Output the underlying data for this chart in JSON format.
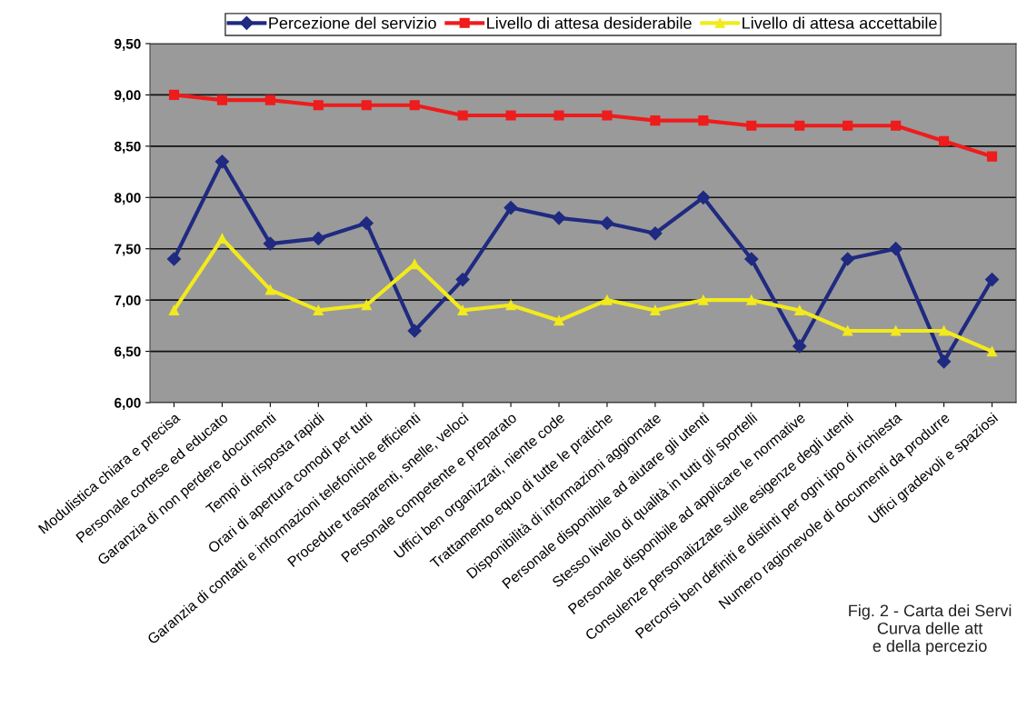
{
  "chart_data": {
    "type": "line",
    "categories": [
      "Modulistica chiara e precisa",
      "Personale cortese ed educato",
      "Garanzia di non perdere documenti",
      "Tempi di risposta rapidi",
      "Orari di apertura comodi per tutti",
      "Garanzia di contatti e informazioni telefoniche efficienti",
      "Procedure trasparenti, snelle, veloci",
      "Personale competente e preparato",
      "Uffici ben organizzati, niente code",
      "Trattamento equo di tutte le pratiche",
      "Disponibilità di informazioni aggiornate",
      "Personale disponibile ad aiutare gli utenti",
      "Stesso livello di qualità in tutti gli sportelli",
      "Personale disponibile ad applicare le normative",
      "Consulenze personalizzate sulle esigenze degli utenti",
      "Percorsi ben definiti e distinti per ogni tipo di richiesta",
      "Numero ragionevole di documenti da produrre",
      "Uffici gradevoli e spaziosi"
    ],
    "series": [
      {
        "name": "Percezione del servizio",
        "color": "#1f2a80",
        "marker": "diamond",
        "values": [
          7.4,
          8.35,
          7.55,
          7.6,
          7.75,
          6.7,
          7.2,
          7.9,
          7.8,
          7.75,
          7.65,
          8.0,
          7.4,
          6.55,
          7.4,
          7.5,
          6.4,
          7.2
        ]
      },
      {
        "name": "Livello di attesa desiderabile",
        "color": "#ee1c1c",
        "marker": "square",
        "values": [
          9.0,
          8.95,
          8.95,
          8.9,
          8.9,
          8.9,
          8.8,
          8.8,
          8.8,
          8.8,
          8.75,
          8.75,
          8.7,
          8.7,
          8.7,
          8.7,
          8.55,
          8.4
        ]
      },
      {
        "name": "Livello di attesa accettabile",
        "color": "#f2ea1c",
        "marker": "triangle",
        "values": [
          6.9,
          7.6,
          7.1,
          6.9,
          6.95,
          7.35,
          6.9,
          6.95,
          6.8,
          7.0,
          6.9,
          7.0,
          7.0,
          6.9,
          6.7,
          6.7,
          6.7,
          6.5
        ]
      }
    ],
    "ylim": [
      6.0,
      9.5
    ],
    "yticks": [
      {
        "value": 6.0,
        "label": "6,00"
      },
      {
        "value": 6.5,
        "label": "6,50"
      },
      {
        "value": 7.0,
        "label": "7,00"
      },
      {
        "value": 7.5,
        "label": "7,50"
      },
      {
        "value": 8.0,
        "label": "8,00"
      },
      {
        "value": 8.5,
        "label": "8,50"
      },
      {
        "value": 9.0,
        "label": "9,00"
      },
      {
        "value": 9.5,
        "label": "9,50"
      }
    ],
    "grid": "y",
    "legend": "top",
    "line_style": "solid",
    "annotations": [
      "Fig. 2 - Carta dei Servi\nCurva delle att\ne della percezio"
    ]
  }
}
